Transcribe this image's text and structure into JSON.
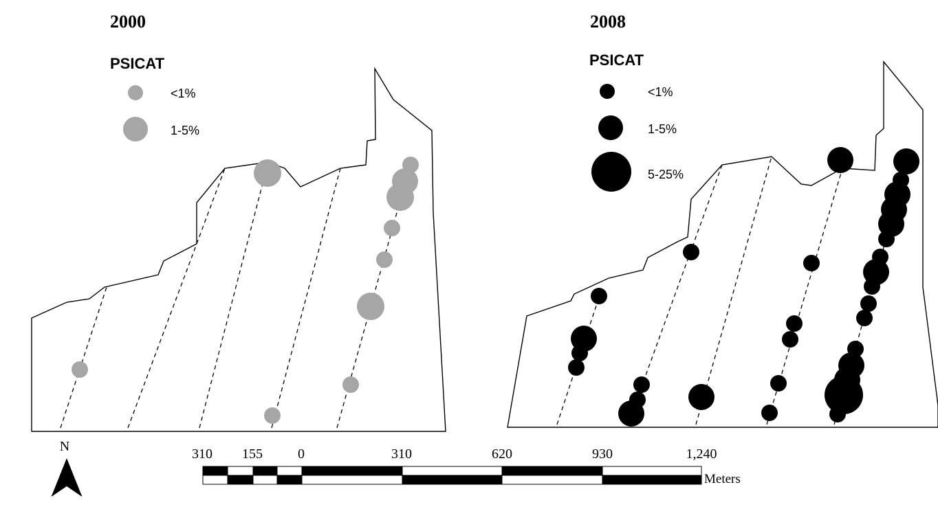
{
  "panels": [
    {
      "year": "2000",
      "legend_title": "PSICAT",
      "legend_items": [
        {
          "label": "<1%",
          "size_class": "small"
        },
        {
          "label": "1-5%",
          "size_class": "medium"
        }
      ],
      "dot_color": "#a6a6a6"
    },
    {
      "year": "2008",
      "legend_title": "PSICAT",
      "legend_items": [
        {
          "label": "<1%",
          "size_class": "small"
        },
        {
          "label": "1-5%",
          "size_class": "medium"
        },
        {
          "label": "5-25%",
          "size_class": "large"
        }
      ],
      "dot_color": "#000000"
    }
  ],
  "north_arrow": {
    "label": "N",
    "icon": "north-arrow-icon"
  },
  "scale_bar": {
    "ticks": [
      "310",
      "155",
      "0",
      "310",
      "620",
      "930",
      "1,240"
    ],
    "unit": "Meters"
  },
  "colors": {
    "outline": "#000000",
    "transect": "#000000",
    "background": "#ffffff"
  }
}
